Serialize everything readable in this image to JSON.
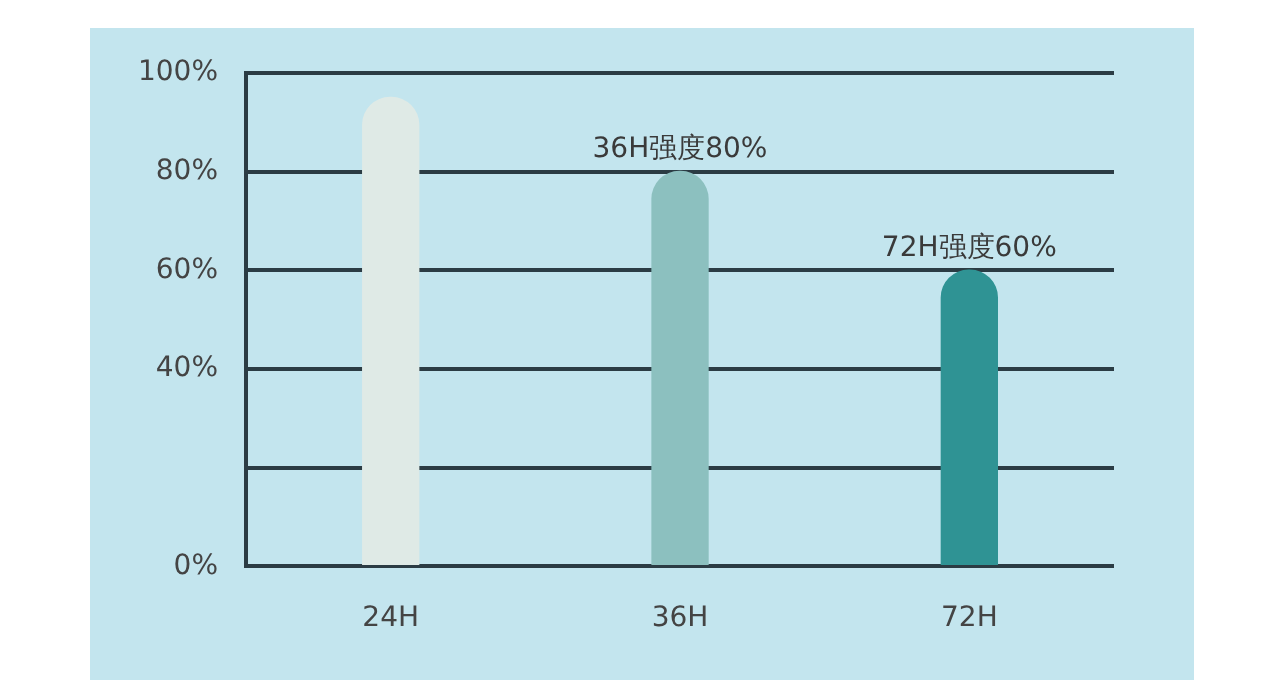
{
  "chart_data": {
    "type": "bar",
    "categories": [
      "24H",
      "36H",
      "72H"
    ],
    "values": [
      95,
      80,
      60
    ],
    "colors": [
      "#dfeae6",
      "#8cc0bf",
      "#2f9394"
    ],
    "value_labels": [
      null,
      "36H强度80%",
      "72H强度60%"
    ],
    "ylim": [
      0,
      100
    ],
    "yticks": [
      {
        "value": 0,
        "label": "0%"
      },
      {
        "value": 20,
        "label": null
      },
      {
        "value": 40,
        "label": "40%"
      },
      {
        "value": 60,
        "label": "60%"
      },
      {
        "value": 80,
        "label": "80%"
      },
      {
        "value": 100,
        "label": "100%"
      }
    ],
    "grid": "y",
    "legend": false
  }
}
